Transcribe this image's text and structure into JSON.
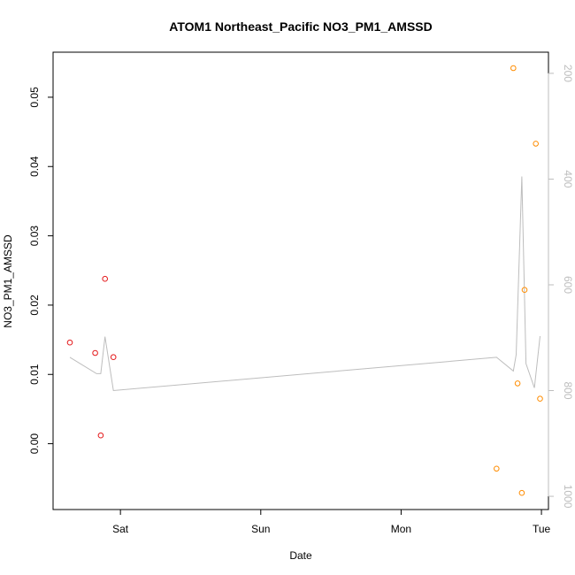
{
  "chart_data": {
    "type": "scatter",
    "title": "ATOM1 Northeast_Pacific NO3_PM1_AMSSD",
    "xlabel": "Date",
    "ylabel": "NO3_PM1_AMSSD",
    "x_ticks": [
      {
        "x": 1.0,
        "label": "Sat"
      },
      {
        "x": 2.0,
        "label": "Sun"
      },
      {
        "x": 3.0,
        "label": "Mon"
      },
      {
        "x": 4.0,
        "label": "Tue"
      }
    ],
    "xlim": [
      0.52,
      4.05
    ],
    "ylim": [
      -0.0095,
      0.0565
    ],
    "y_ticks": [
      {
        "v": 0.0,
        "label": "0.00"
      },
      {
        "v": 0.01,
        "label": "0.01"
      },
      {
        "v": 0.02,
        "label": "0.02"
      },
      {
        "v": 0.03,
        "label": "0.03"
      },
      {
        "v": 0.04,
        "label": "0.04"
      },
      {
        "v": 0.05,
        "label": "0.05"
      }
    ],
    "right_axis": {
      "ylim": [
        1025,
        160
      ],
      "ticks": [
        {
          "v": 200,
          "label": "200"
        },
        {
          "v": 400,
          "label": "400"
        },
        {
          "v": 600,
          "label": "600"
        },
        {
          "v": 800,
          "label": "800"
        },
        {
          "v": 1000,
          "label": "1000"
        }
      ]
    },
    "series": [
      {
        "color": "#e41a1c",
        "points": [
          {
            "x": 0.64,
            "y": 0.0146
          },
          {
            "x": 0.82,
            "y": 0.0131
          },
          {
            "x": 0.86,
            "y": 0.0012
          },
          {
            "x": 0.89,
            "y": 0.0238
          },
          {
            "x": 0.95,
            "y": 0.0125
          }
        ]
      },
      {
        "color": "#ff8c00",
        "points": [
          {
            "x": 3.68,
            "y": -0.0036
          },
          {
            "x": 3.8,
            "y": 0.0542
          },
          {
            "x": 3.83,
            "y": 0.0087
          },
          {
            "x": 3.86,
            "y": -0.0071
          },
          {
            "x": 3.88,
            "y": 0.0222
          },
          {
            "x": 3.96,
            "y": 0.0433
          },
          {
            "x": 3.99,
            "y": 0.0065
          }
        ]
      }
    ],
    "altitude_line": {
      "color": "#bdbdbd",
      "points": [
        {
          "x": 0.64,
          "y": 737
        },
        {
          "x": 0.83,
          "y": 768
        },
        {
          "x": 0.86,
          "y": 768
        },
        {
          "x": 0.89,
          "y": 698
        },
        {
          "x": 0.95,
          "y": 800
        },
        {
          "x": 3.68,
          "y": 737
        },
        {
          "x": 3.8,
          "y": 763
        },
        {
          "x": 3.82,
          "y": 732
        },
        {
          "x": 3.86,
          "y": 395
        },
        {
          "x": 3.89,
          "y": 749
        },
        {
          "x": 3.95,
          "y": 795
        },
        {
          "x": 3.99,
          "y": 697
        }
      ]
    }
  }
}
